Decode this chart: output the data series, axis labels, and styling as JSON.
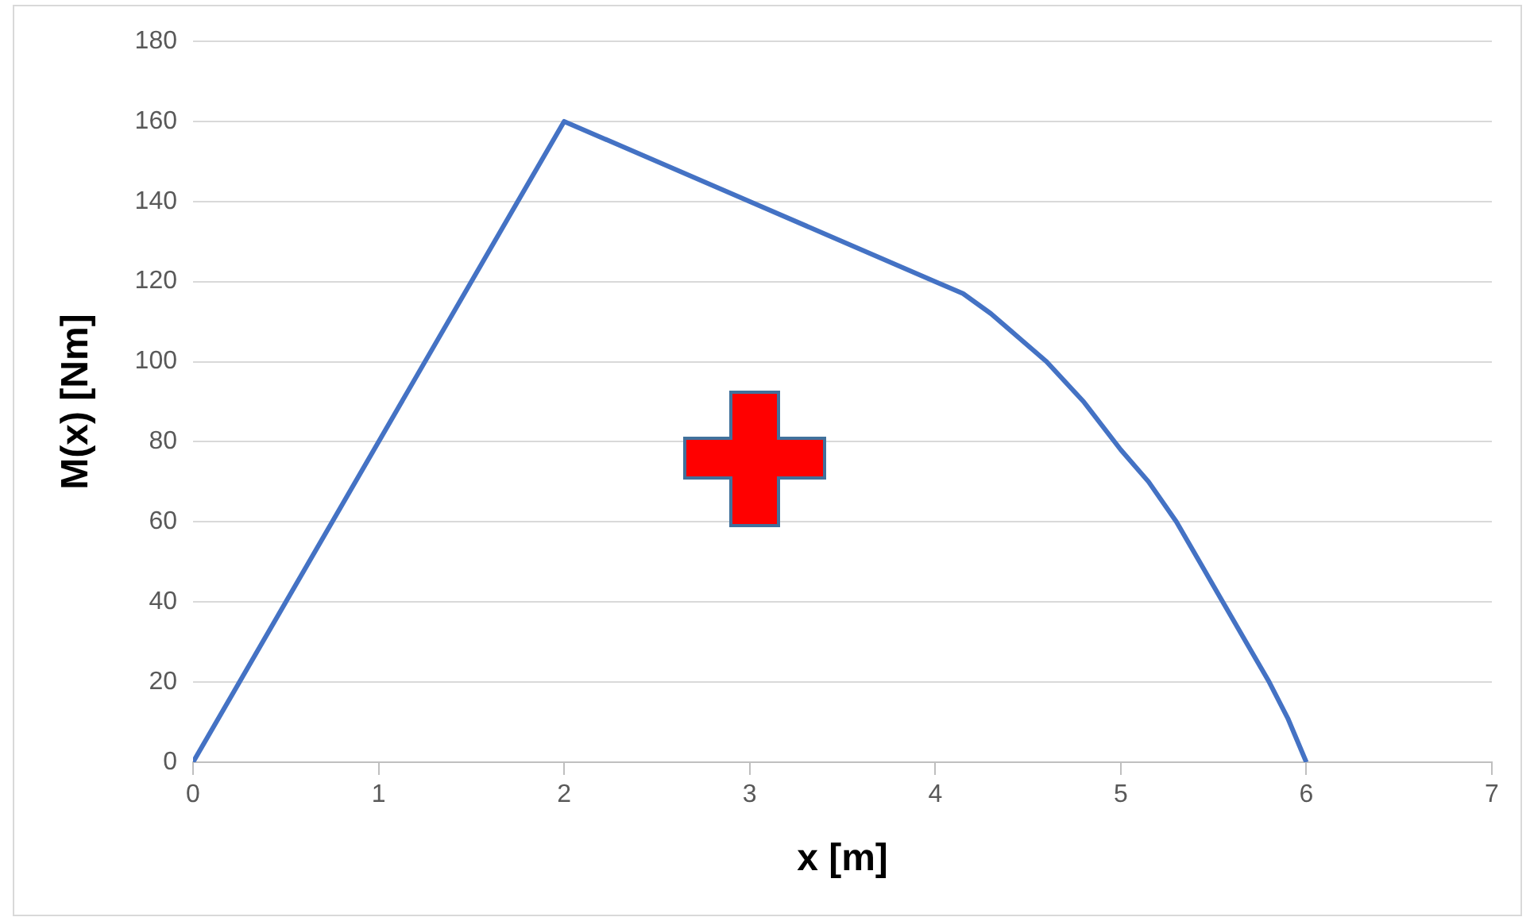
{
  "chart_data": {
    "type": "line",
    "xlabel": "x [m]",
    "ylabel": "M(x) [Nm]",
    "x": [
      0,
      2,
      4,
      4.15,
      4.3,
      4.45,
      4.6,
      4.8,
      5,
      5.15,
      5.3,
      5.45,
      5.55,
      5.7,
      5.8,
      5.9,
      6
    ],
    "series": [
      {
        "color": "#4472c4",
        "values": [
          0,
          160,
          120,
          117,
          112,
          106,
          100,
          90,
          78,
          70,
          60,
          48,
          40,
          28,
          20,
          11,
          0
        ]
      }
    ],
    "xlim": [
      0,
      7
    ],
    "xticks": [
      0,
      1,
      2,
      3,
      4,
      5,
      6,
      7
    ],
    "ylim": [
      0,
      180
    ],
    "yticks": [
      0,
      20,
      40,
      60,
      80,
      100,
      120,
      140,
      160,
      180
    ],
    "grid": "y",
    "legend": false,
    "marker": "none",
    "line_style": "solid"
  }
}
